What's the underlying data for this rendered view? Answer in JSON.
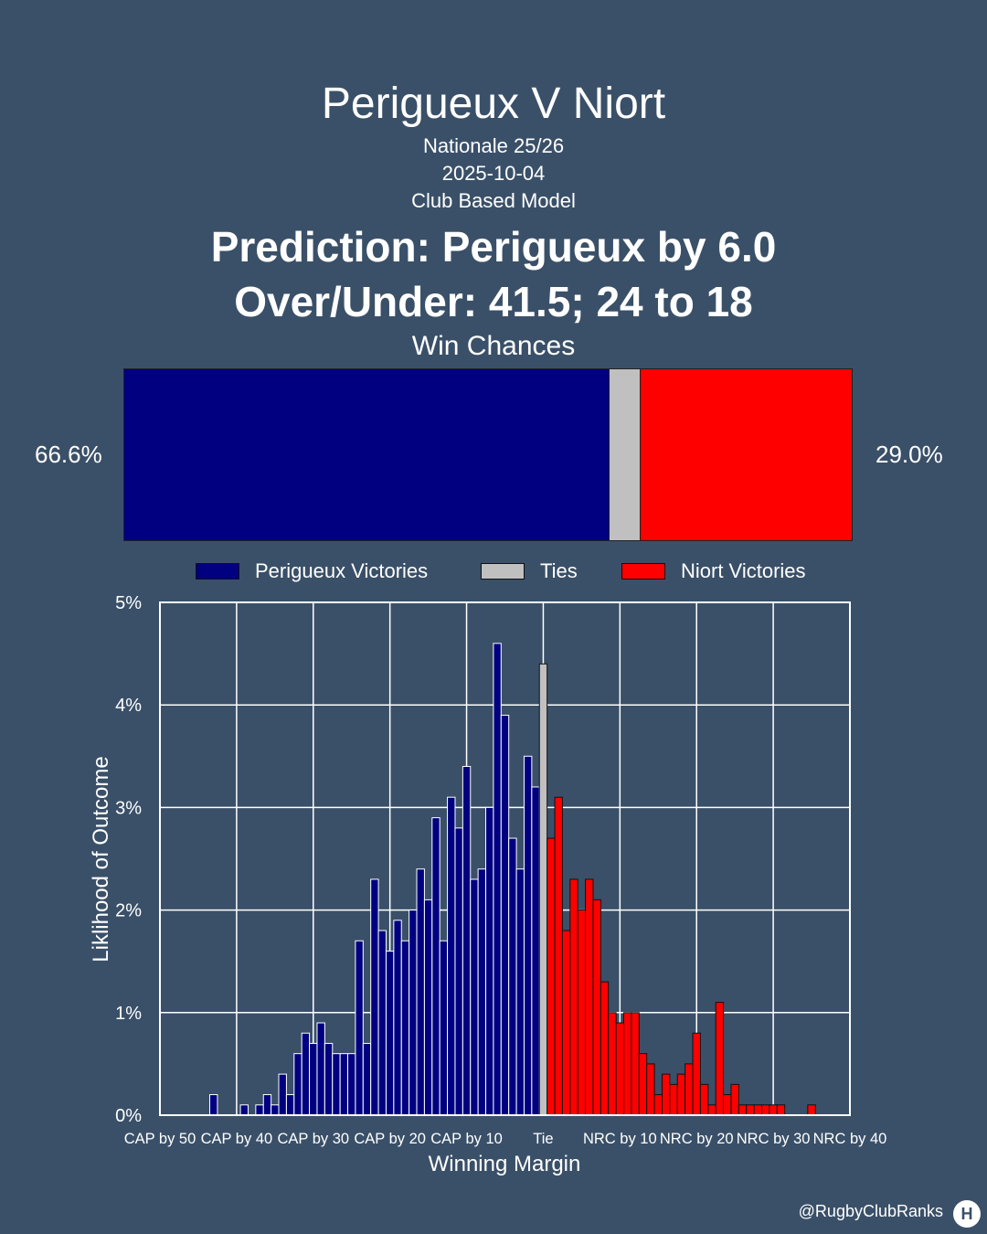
{
  "title": "Perigueux V Niort",
  "subtitle_lines": [
    "Nationale 25/26",
    "2025-10-04",
    "Club Based Model"
  ],
  "prediction": "Prediction: Perigueux by 6.0",
  "over_under": "Over/Under: 41.5; 24 to 18",
  "win_chances": {
    "title": "Win Chances",
    "home_pct_label": "66.6%",
    "away_pct_label": "29.0%",
    "home": 66.6,
    "tie": 4.4,
    "away": 29.0
  },
  "legend": {
    "home": "Perigueux Victories",
    "tie": "Ties",
    "away": "Niort Victories"
  },
  "colors": {
    "home": "#000080",
    "tie": "#c0c0c0",
    "away": "#ff0000",
    "background": "#3a5068"
  },
  "chart_data": {
    "type": "bar",
    "xlabel": "Winning Margin",
    "ylabel": "Liklihood of Outcome",
    "xlim": [
      -50,
      40
    ],
    "ylim": [
      0,
      5
    ],
    "y_ticks": [
      "0%",
      "1%",
      "2%",
      "3%",
      "4%",
      "5%"
    ],
    "x_ticks": [
      {
        "at": -50,
        "label": "CAP by 50"
      },
      {
        "at": -40,
        "label": "CAP by 40"
      },
      {
        "at": -30,
        "label": "CAP by 30"
      },
      {
        "at": -20,
        "label": "CAP by 20"
      },
      {
        "at": -10,
        "label": "CAP by 10"
      },
      {
        "at": 0,
        "label": "Tie"
      },
      {
        "at": 10,
        "label": "NRC by 10"
      },
      {
        "at": 20,
        "label": "NRC by 20"
      },
      {
        "at": 30,
        "label": "NRC by 30"
      },
      {
        "at": 40,
        "label": "NRC by 40"
      }
    ],
    "grid": true,
    "series": [
      {
        "name": "Perigueux Victories",
        "x": [
          -43,
          -39,
          -37,
          -36,
          -35,
          -34,
          -33,
          -32,
          -31,
          -30,
          -29,
          -28,
          -27,
          -26,
          -25,
          -24,
          -23,
          -22,
          -21,
          -20,
          -19,
          -18,
          -17,
          -16,
          -15,
          -14,
          -13,
          -12,
          -11,
          -10,
          -9,
          -8,
          -7,
          -6,
          -5,
          -4,
          -3,
          -2,
          -1
        ],
        "values": [
          0.2,
          0.1,
          0.1,
          0.2,
          0.1,
          0.4,
          0.2,
          0.6,
          0.8,
          0.7,
          0.9,
          0.7,
          0.6,
          0.6,
          0.6,
          1.7,
          0.7,
          2.3,
          1.8,
          1.6,
          1.9,
          1.7,
          2.0,
          2.4,
          2.1,
          2.9,
          1.7,
          3.1,
          2.8,
          3.4,
          2.3,
          2.4,
          3.0,
          4.6,
          3.9,
          2.7,
          2.4,
          3.5,
          3.2
        ]
      },
      {
        "name": "Ties",
        "x": [
          0
        ],
        "values": [
          4.4
        ]
      },
      {
        "name": "Niort Victories",
        "x": [
          1,
          2,
          3,
          4,
          5,
          6,
          7,
          8,
          9,
          10,
          11,
          12,
          13,
          14,
          15,
          16,
          17,
          18,
          19,
          20,
          21,
          22,
          23,
          24,
          25,
          26,
          27,
          28,
          29,
          30,
          31,
          35
        ],
        "values": [
          2.7,
          3.1,
          1.8,
          2.3,
          2.0,
          2.3,
          2.1,
          1.3,
          1.0,
          0.9,
          1.0,
          1.0,
          0.6,
          0.5,
          0.2,
          0.4,
          0.3,
          0.4,
          0.5,
          0.8,
          0.3,
          0.1,
          1.1,
          0.2,
          0.3,
          0.1,
          0.1,
          0.1,
          0.1,
          0.1,
          0.1,
          0.1
        ]
      }
    ]
  },
  "footer": {
    "handle": "@RugbyClubRanks",
    "logo_text": "H"
  }
}
